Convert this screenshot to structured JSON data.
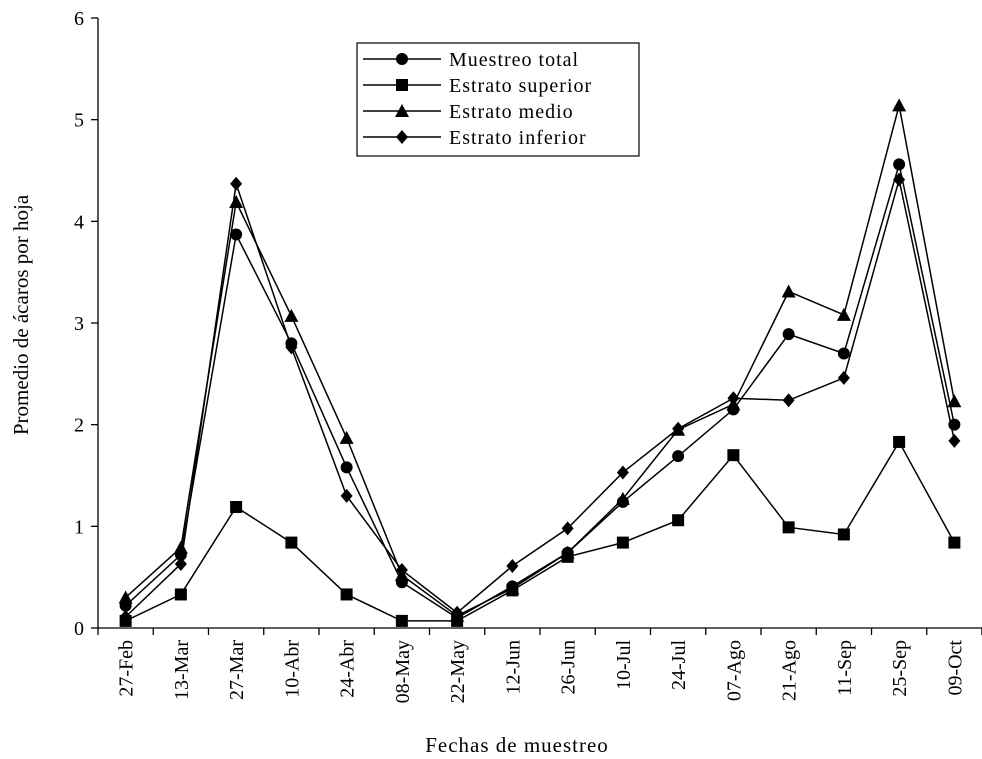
{
  "chart_data": {
    "type": "line",
    "title": "",
    "xlabel": "Fechas de muestreo",
    "ylabel": "Promedio de ácaros por hoja",
    "ylim": [
      0,
      6
    ],
    "yticks": [
      "0",
      "1",
      "2",
      "3",
      "4",
      "5",
      "6"
    ],
    "categories": [
      "27-Feb",
      "13-Mar",
      "27-Mar",
      "10-Abr",
      "24-Abr",
      "08-May",
      "22-May",
      "12-Jun",
      "26-Jun",
      "10-Jul",
      "24-Jul",
      "07-Ago",
      "21-Ago",
      "11-Sep",
      "25-Sep",
      "09-Oct"
    ],
    "legend_position": "top-center",
    "grid": false,
    "series": [
      {
        "name": "Muestreo total",
        "marker": "circle",
        "values": [
          0.22,
          0.72,
          3.87,
          2.8,
          1.58,
          0.45,
          0.1,
          0.41,
          0.74,
          1.24,
          1.69,
          2.15,
          2.89,
          2.7,
          4.56,
          2.0
        ]
      },
      {
        "name": "Estrato superior",
        "marker": "square",
        "values": [
          0.07,
          0.33,
          1.19,
          0.84,
          0.33,
          0.07,
          0.07,
          0.37,
          0.7,
          0.84,
          1.06,
          1.7,
          0.99,
          0.92,
          1.83,
          0.84
        ]
      },
      {
        "name": "Estrato medio",
        "marker": "triangle",
        "values": [
          0.3,
          0.79,
          4.19,
          3.07,
          1.87,
          0.52,
          0.12,
          0.39,
          0.74,
          1.27,
          1.95,
          2.2,
          3.31,
          3.08,
          5.14,
          2.23
        ]
      },
      {
        "name": "Estrato inferior",
        "marker": "diamond",
        "values": [
          0.11,
          0.63,
          4.37,
          2.76,
          1.3,
          0.57,
          0.15,
          0.61,
          0.98,
          1.53,
          1.96,
          2.26,
          2.24,
          2.46,
          4.41,
          1.84
        ]
      }
    ]
  }
}
